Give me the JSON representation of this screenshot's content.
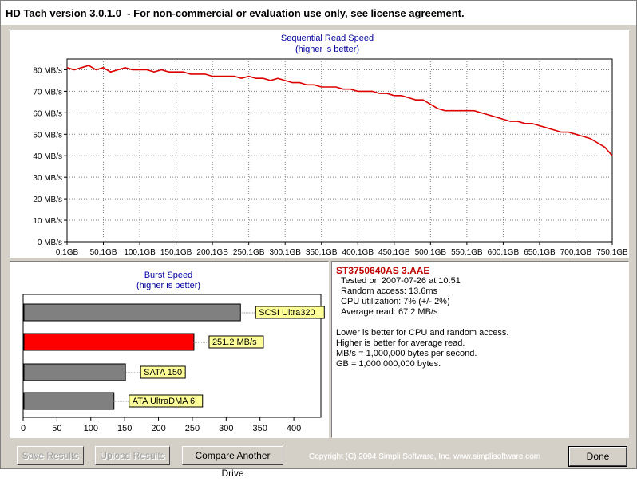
{
  "window": {
    "title": "HD Tach version 3.0.1.0  - For non-commercial or evaluation use only, see license agreement."
  },
  "read_chart": {
    "title_line1": "Sequential Read Speed",
    "title_line2": "(higher is better)",
    "y_labels": [
      "80 MB/s",
      "70 MB/s",
      "60 MB/s",
      "50 MB/s",
      "40 MB/s",
      "30 MB/s",
      "20 MB/s",
      "10 MB/s",
      "0 MB/s"
    ],
    "x_labels": [
      "0,1GB",
      "50,1GB",
      "100,1GB",
      "150,1GB",
      "200,1GB",
      "250,1GB",
      "300,1GB",
      "350,1GB",
      "400,1GB",
      "450,1GB",
      "500,1GB",
      "550,1GB",
      "600,1GB",
      "650,1GB",
      "700,1GB",
      "750,1GB"
    ]
  },
  "burst_chart": {
    "title_line1": "Burst Speed",
    "title_line2": "(higher is better)",
    "bars": [
      {
        "label": "SCSI Ultra320",
        "value": 320,
        "color": "#808080"
      },
      {
        "label": "251.2 MB/s",
        "value": 251.2,
        "color": "#ff0000"
      },
      {
        "label": "SATA 150",
        "value": 150,
        "color": "#808080"
      },
      {
        "label": "ATA UltraDMA 6",
        "value": 133,
        "color": "#808080"
      }
    ],
    "x_labels": [
      "0",
      "50",
      "100",
      "150",
      "200",
      "250",
      "300",
      "350",
      "400"
    ]
  },
  "info": {
    "drive": "ST3750640AS 3.AAE",
    "tested_on": "Tested on 2007-07-26 at 10:51",
    "random_access": "Random access: 13.6ms",
    "cpu_utilization": "CPU utilization: 7% (+/- 2%)",
    "average_read": "Average read: 67.2 MB/s",
    "note1": "Lower is better for CPU and random access.",
    "note2": "Higher is better for average read.",
    "note3": "MB/s = 1,000,000 bytes per second.",
    "note4": "GB = 1,000,000,000 bytes."
  },
  "buttons": {
    "save": "Save Results",
    "upload": "Upload Results",
    "compare": "Compare Another Drive",
    "done": "Done"
  },
  "copyright": "Copyright (C) 2004 Simpli Software, Inc. www.simplisoftware.com",
  "chart_data": [
    {
      "type": "line",
      "title": "Sequential Read Speed",
      "subtitle": "(higher is better)",
      "xlabel": "",
      "ylabel": "",
      "x_unit": "GB",
      "xlim": [
        0.1,
        750.1
      ],
      "ylim": [
        0,
        85
      ],
      "grid": true,
      "series": [
        {
          "color": "#dd0000",
          "x": [
            0.1,
            10,
            20,
            30,
            40,
            50,
            60,
            70,
            80,
            90,
            100,
            110,
            120,
            130,
            140,
            150,
            160,
            170,
            180,
            190,
            200,
            210,
            220,
            230,
            240,
            250,
            260,
            270,
            280,
            290,
            300,
            310,
            320,
            330,
            340,
            350,
            360,
            370,
            380,
            390,
            400,
            410,
            420,
            430,
            440,
            450,
            460,
            470,
            480,
            490,
            500,
            510,
            520,
            530,
            540,
            550,
            560,
            570,
            580,
            590,
            600,
            610,
            620,
            630,
            640,
            650,
            660,
            670,
            680,
            690,
            700,
            710,
            720,
            730,
            740,
            750.1
          ],
          "values": [
            81,
            80,
            81,
            82,
            80,
            81,
            79,
            80,
            81,
            80,
            80,
            80,
            79,
            80,
            79,
            79,
            79,
            78,
            78,
            78,
            77,
            77,
            77,
            77,
            76,
            77,
            76,
            76,
            75,
            76,
            75,
            74,
            74,
            73,
            73,
            72,
            72,
            72,
            71,
            71,
            70,
            70,
            70,
            69,
            69,
            68,
            68,
            67,
            66,
            66,
            64,
            62,
            61,
            61,
            61,
            61,
            61,
            60,
            59,
            58,
            57,
            56,
            56,
            55,
            55,
            54,
            53,
            52,
            51,
            51,
            50,
            49,
            48,
            46,
            44,
            40
          ]
        }
      ]
    },
    {
      "type": "bar",
      "orientation": "horizontal",
      "title": "Burst Speed",
      "subtitle": "(higher is better)",
      "categories": [
        "SCSI Ultra320",
        "251.2 MB/s",
        "SATA 150",
        "ATA UltraDMA 6"
      ],
      "values": [
        320,
        251.2,
        150,
        133
      ],
      "xlim": [
        0,
        440
      ],
      "grid": false
    }
  ]
}
